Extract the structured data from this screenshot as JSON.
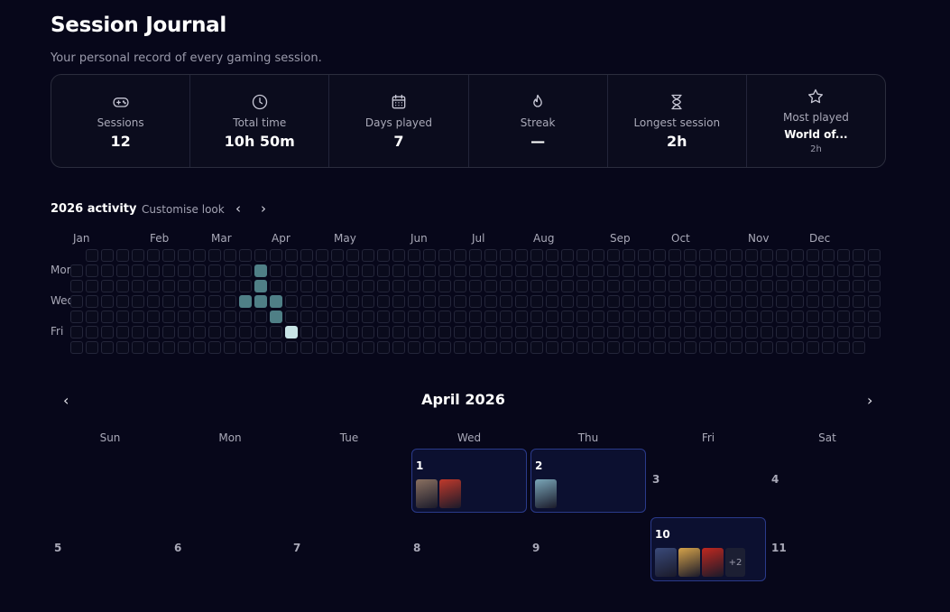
{
  "header": {
    "title": "Session Journal",
    "subtitle": "Your personal record of every gaming session."
  },
  "stats": [
    {
      "icon": "gamepad-icon",
      "label": "Sessions",
      "value": "12"
    },
    {
      "icon": "clock-icon",
      "label": "Total time",
      "value": "10h 50m"
    },
    {
      "icon": "calendar-icon",
      "label": "Days played",
      "value": "7"
    },
    {
      "icon": "flame-icon",
      "label": "Streak",
      "value": "—"
    },
    {
      "icon": "hourglass-icon",
      "label": "Longest session",
      "value": "2h"
    },
    {
      "icon": "star-icon",
      "label": "Most played",
      "value": "World of...",
      "sub": "2h"
    }
  ],
  "activity": {
    "title": "2026 activity",
    "customise_label": "Customise look",
    "prev": "‹",
    "next": "›",
    "months": [
      "Jan",
      "Feb",
      "Mar",
      "Apr",
      "May",
      "Jun",
      "Jul",
      "Aug",
      "Sep",
      "Oct",
      "Nov",
      "Dec"
    ],
    "day_labels": [
      "Mon",
      "Wed",
      "Fri"
    ],
    "weeks": 53,
    "first_week_start_row": 1,
    "last_week_end_row": 5,
    "active_cells": [
      {
        "week": 12,
        "day": 1,
        "level": 2
      },
      {
        "week": 12,
        "day": 2,
        "level": 2
      },
      {
        "week": 11,
        "day": 3,
        "level": 2
      },
      {
        "week": 12,
        "day": 3,
        "level": 2
      },
      {
        "week": 13,
        "day": 3,
        "level": 2
      },
      {
        "week": 13,
        "day": 4,
        "level": 2
      },
      {
        "week": 14,
        "day": 5,
        "level": 4
      }
    ],
    "colors": {
      "empty": "#0a0b1c",
      "level2": "#4f7f86",
      "level4": "#c8e4e6"
    }
  },
  "calendar": {
    "title": "April 2026",
    "prev": "‹",
    "next": "›",
    "weekdays": [
      "Sun",
      "Mon",
      "Tue",
      "Wed",
      "Thu",
      "Fri",
      "Sat"
    ],
    "days": [
      {
        "num": "1",
        "col": 3,
        "row": 0,
        "filled": true,
        "thumbs": [
          "#8a7060",
          "#c0392b"
        ]
      },
      {
        "num": "2",
        "col": 4,
        "row": 0,
        "filled": true,
        "thumbs": [
          "#7aa6b8"
        ]
      },
      {
        "num": "3",
        "col": 5,
        "row": 0,
        "filled": false
      },
      {
        "num": "4",
        "col": 6,
        "row": 0,
        "filled": false
      },
      {
        "num": "5",
        "col": 0,
        "row": 1,
        "filled": false
      },
      {
        "num": "6",
        "col": 1,
        "row": 1,
        "filled": false
      },
      {
        "num": "7",
        "col": 2,
        "row": 1,
        "filled": false
      },
      {
        "num": "8",
        "col": 3,
        "row": 1,
        "filled": false
      },
      {
        "num": "9",
        "col": 4,
        "row": 1,
        "filled": false
      },
      {
        "num": "10",
        "col": 5,
        "row": 1,
        "filled": true,
        "thumbs": [
          "#3a4a7a",
          "#d4a24a",
          "#c0281f"
        ],
        "more": "+2"
      },
      {
        "num": "11",
        "col": 6,
        "row": 1,
        "filled": false
      }
    ]
  }
}
